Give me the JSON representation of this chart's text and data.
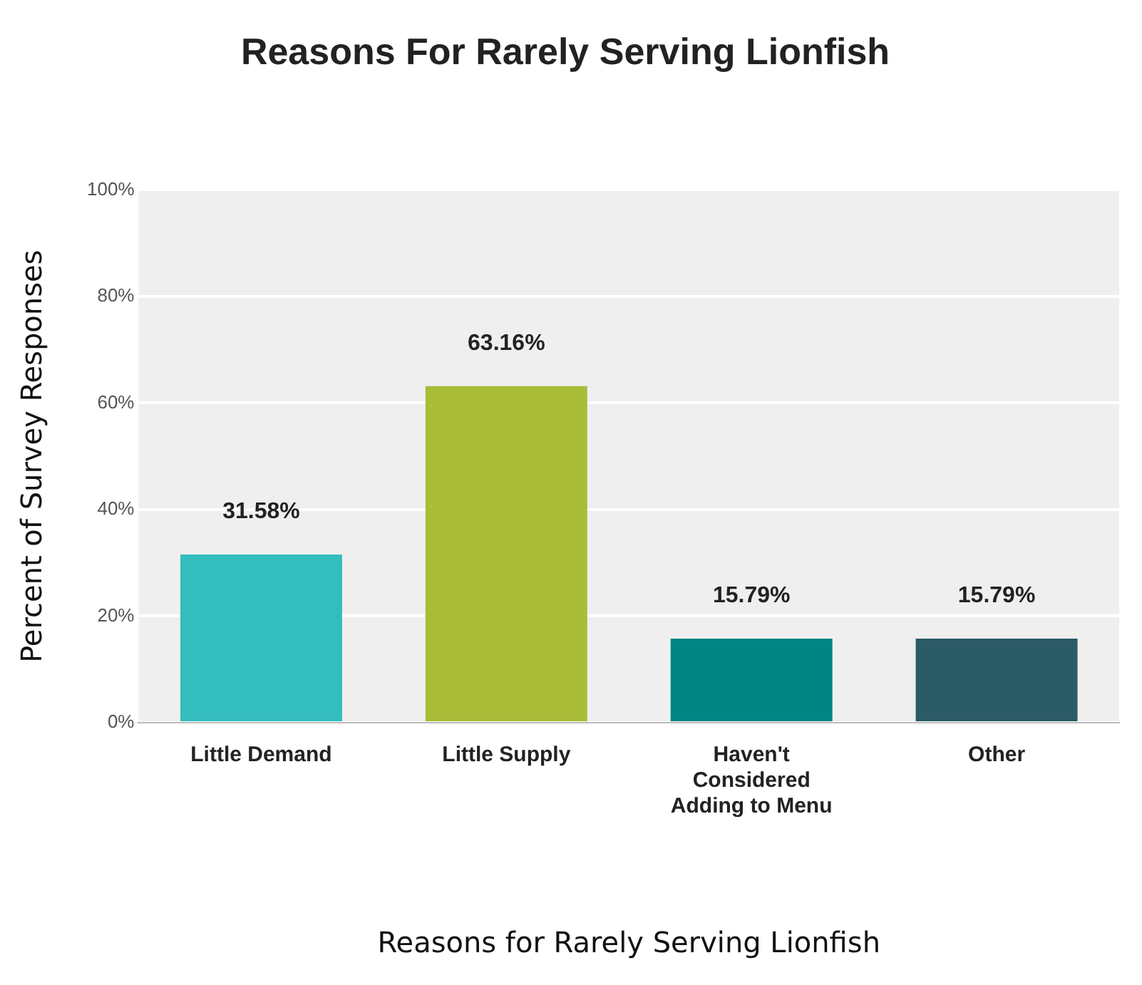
{
  "chart_data": {
    "type": "bar",
    "title": "Reasons For Rarely Serving Lionfish",
    "xlabel": "Reasons for Rarely Serving Lionfish",
    "ylabel": "Percent of Survey Responses",
    "categories": [
      "Little Demand",
      "Little Supply",
      "Haven't Considered Adding to Menu",
      "Other"
    ],
    "values": [
      31.58,
      63.16,
      15.79,
      15.79
    ],
    "value_labels": [
      "31.58%",
      "63.16%",
      "15.79%",
      "15.79%"
    ],
    "colors": [
      "#33bdbd",
      "#a9bd38",
      "#008585",
      "#2b5b67"
    ],
    "ylim": [
      0,
      100
    ],
    "yticks": [
      {
        "value": 0,
        "label": "0%"
      },
      {
        "value": 20,
        "label": "20%"
      },
      {
        "value": 40,
        "label": "40%"
      },
      {
        "value": 60,
        "label": "60%"
      },
      {
        "value": 80,
        "label": "80%"
      },
      {
        "value": 100,
        "label": "100%"
      }
    ],
    "grid": "y",
    "legend": false
  }
}
